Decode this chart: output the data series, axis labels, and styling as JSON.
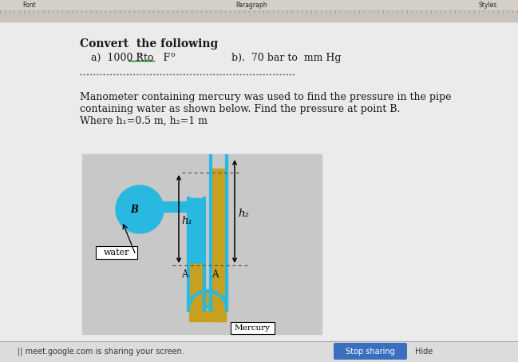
{
  "page_bg": "#ebebeb",
  "toolbar_bg": "#d4d0c8",
  "ruler_bg": "#c8c4bc",
  "title_text": "Convert  the following",
  "line_a_prefix": "a)  1000 R",
  "line_a_super1": "o",
  "line_a_mid": " to   F",
  "line_a_super2": "o",
  "line_b": "b).  70 bar to  mm Hg",
  "underline_color": "#008000",
  "problem_line1": "Manometer containing mercury was used to find the pressure in the pipe",
  "problem_line2": "containing water as shown below. Find the pressure at point B.",
  "problem_line3": "Where h₁=0.5 m, h₂=1 m",
  "diagram_bg": "#c8c8c8",
  "water_color": "#29b8e0",
  "mercury_color": "#c8a020",
  "pipe_outline": "#29b8e0",
  "label_B": "B",
  "label_water": "water",
  "label_h1": "h₁",
  "label_h2": "h₂",
  "label_A": "A",
  "label_mercury": "Mercury",
  "bottom_bg": "#e0e0e0",
  "btn_color": "#3a6fbf",
  "btn_text": "Stop sharing",
  "bottom_text": "meet.google.com is sharing your screen.",
  "hide_text": "Hide",
  "font_color": "#1a1a1a",
  "text_fontsize": 9,
  "title_fontsize": 10
}
